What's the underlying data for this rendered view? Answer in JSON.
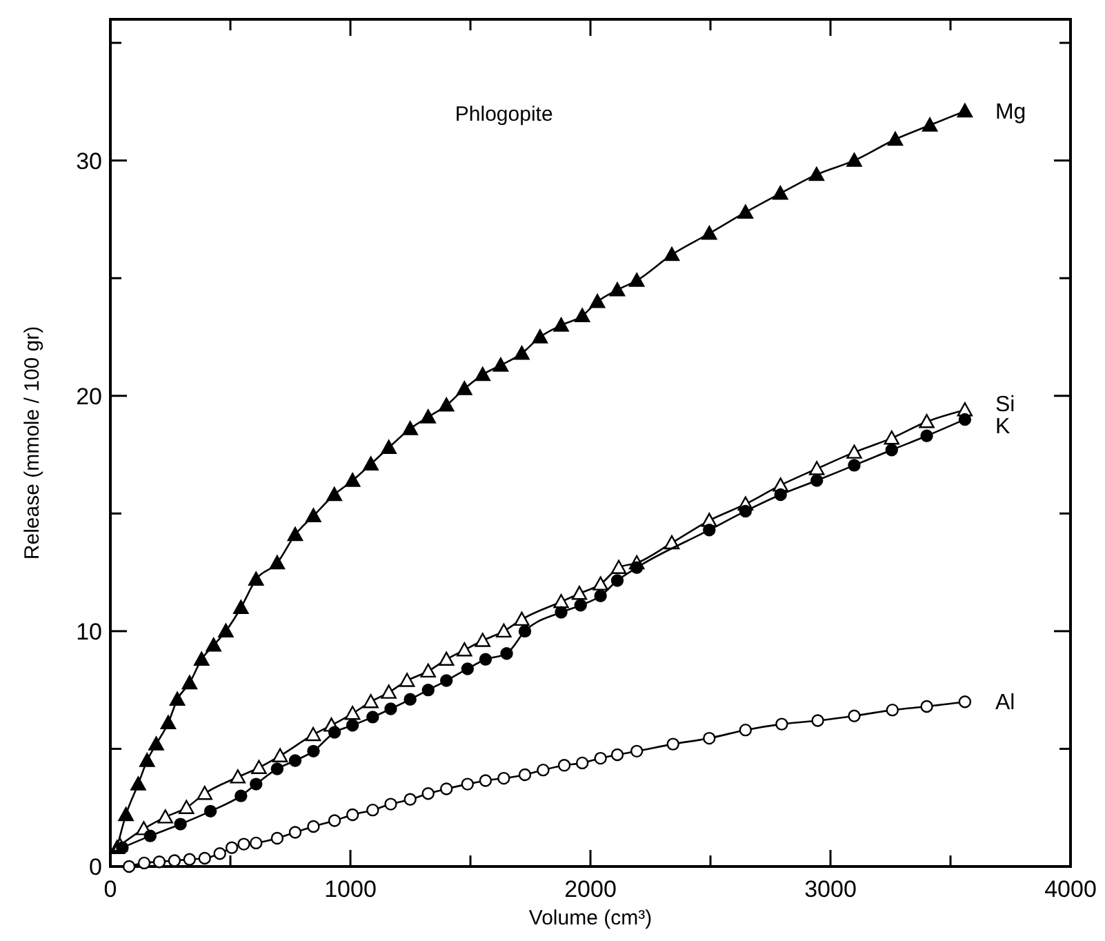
{
  "chart_data": {
    "type": "line",
    "title": "Phlogopite",
    "xlabel": "Volume (cm³)",
    "ylabel": "Release (mmole / 100 gr)",
    "xlim": [
      0,
      4000
    ],
    "ylim": [
      0,
      36
    ],
    "xticks": [
      0,
      {
        "value": 500,
        "label": null
      },
      1000,
      {
        "value": 1500,
        "label": null
      },
      2000,
      {
        "value": 2500,
        "label": null
      },
      3000,
      {
        "value": 3500,
        "label": null
      },
      4000
    ],
    "yticks": [
      0,
      {
        "value": 5,
        "label": null
      },
      10,
      {
        "value": 15,
        "label": null
      },
      20,
      {
        "value": 25,
        "label": null
      },
      30,
      {
        "value": 35,
        "label": null
      }
    ],
    "series": [
      {
        "name": "Mg",
        "color": "#000000",
        "marker": "triangle",
        "x": [
          28,
          65,
          116,
          153,
          191,
          241,
          279,
          330,
          380,
          430,
          481,
          544,
          607,
          695,
          770,
          846,
          933,
          1009,
          1085,
          1160,
          1249,
          1324,
          1400,
          1475,
          1551,
          1626,
          1714,
          1790,
          1878,
          1966,
          2029,
          2112,
          2193,
          2339,
          2495,
          2646,
          2791,
          2942,
          3099,
          3270,
          3414,
          3560
        ],
        "values": [
          0.8,
          2.2,
          3.5,
          4.5,
          5.2,
          6.1,
          7.1,
          7.8,
          8.8,
          9.4,
          10.0,
          11.0,
          12.2,
          12.9,
          14.1,
          14.9,
          15.8,
          16.4,
          17.1,
          17.8,
          18.6,
          19.1,
          19.6,
          20.3,
          20.9,
          21.3,
          21.8,
          22.5,
          23.0,
          23.4,
          24.0,
          24.5,
          24.9,
          26.0,
          26.9,
          27.8,
          28.6,
          29.4,
          30.0,
          30.9,
          31.5,
          32.1
        ]
      },
      {
        "name": "Si",
        "color": "#ffffff",
        "marker": "triangle",
        "x": [
          40,
          139,
          229,
          317,
          393,
          531,
          619,
          707,
          845,
          921,
          1009,
          1085,
          1160,
          1236,
          1324,
          1400,
          1475,
          1551,
          1639,
          1714,
          1878,
          1954,
          2042,
          2118,
          2193,
          2339,
          2495,
          2646,
          2792,
          2943,
          3099,
          3255,
          3401,
          3560
        ],
        "values": [
          0.9,
          1.6,
          2.1,
          2.5,
          3.1,
          3.8,
          4.2,
          4.7,
          5.6,
          6.0,
          6.5,
          7.0,
          7.4,
          7.9,
          8.3,
          8.8,
          9.2,
          9.6,
          10.0,
          10.5,
          11.25,
          11.6,
          12.0,
          12.7,
          12.9,
          13.75,
          14.7,
          15.4,
          16.2,
          16.9,
          17.6,
          18.2,
          18.9,
          19.4
        ]
      },
      {
        "name": "K",
        "color": "#000000",
        "marker": "circle",
        "x": [
          50,
          166,
          292,
          417,
          544,
          607,
          695,
          770,
          846,
          934,
          1009,
          1093,
          1168,
          1249,
          1324,
          1400,
          1488,
          1563,
          1651,
          1727,
          1878,
          1959,
          2042,
          2112,
          2193,
          2495,
          2646,
          2792,
          2943,
          3099,
          3255,
          3401,
          3560
        ],
        "values": [
          0.8,
          1.3,
          1.8,
          2.35,
          3.0,
          3.5,
          4.15,
          4.5,
          4.9,
          5.7,
          6.0,
          6.35,
          6.7,
          7.1,
          7.5,
          7.9,
          8.4,
          8.8,
          9.05,
          10.0,
          10.8,
          11.1,
          11.5,
          12.15,
          12.7,
          14.3,
          15.1,
          15.8,
          16.4,
          17.05,
          17.7,
          18.3,
          19.0
        ]
      },
      {
        "name": "Al",
        "color": "#ffffff",
        "marker": "circle",
        "x": [
          78,
          141,
          204,
          267,
          330,
          393,
          456,
          506,
          556,
          607,
          695,
          770,
          846,
          934,
          1009,
          1093,
          1168,
          1249,
          1324,
          1400,
          1488,
          1563,
          1639,
          1727,
          1803,
          1891,
          1966,
          2042,
          2112,
          2193,
          2344,
          2495,
          2646,
          2797,
          2947,
          3099,
          3258,
          3401,
          3560
        ],
        "values": [
          0.0,
          0.15,
          0.2,
          0.25,
          0.3,
          0.35,
          0.55,
          0.8,
          0.95,
          1.0,
          1.2,
          1.45,
          1.7,
          1.95,
          2.2,
          2.4,
          2.65,
          2.85,
          3.1,
          3.3,
          3.5,
          3.65,
          3.75,
          3.9,
          4.1,
          4.3,
          4.4,
          4.6,
          4.75,
          4.9,
          5.2,
          5.45,
          5.8,
          6.05,
          6.2,
          6.4,
          6.65,
          6.8,
          7.0
        ]
      }
    ]
  }
}
